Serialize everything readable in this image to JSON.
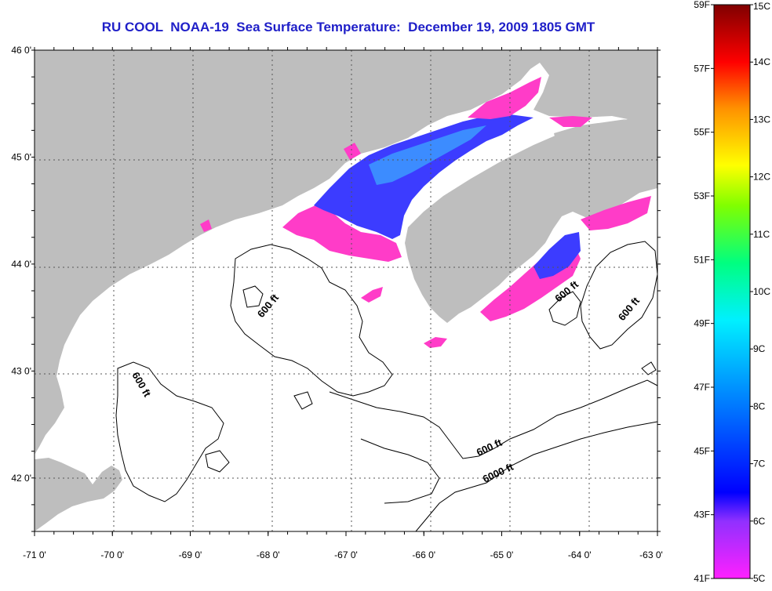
{
  "title": "RU COOL  NOAA-19  Sea Surface Temperature:  December 19, 2009 1805 GMT",
  "map": {
    "lon_ticks": [
      {
        "lon": -71,
        "label": "-71 0'"
      },
      {
        "lon": -70,
        "label": "-70 0'"
      },
      {
        "lon": -69,
        "label": "-69 0'"
      },
      {
        "lon": -68,
        "label": "-68 0'"
      },
      {
        "lon": -67,
        "label": "-67 0'"
      },
      {
        "lon": -66,
        "label": "-66 0'"
      },
      {
        "lon": -65,
        "label": "-65 0'"
      },
      {
        "lon": -64,
        "label": "-64 0'"
      },
      {
        "lon": -63,
        "label": "-63 0'"
      }
    ],
    "lat_ticks": [
      {
        "lat": 46,
        "label": "46 0'"
      },
      {
        "lat": 45,
        "label": "45 0'"
      },
      {
        "lat": 44,
        "label": "44 0'"
      },
      {
        "lat": 43,
        "label": "43 0'"
      },
      {
        "lat": 42,
        "label": "42 0'"
      }
    ],
    "lon_range": [
      -71,
      -63
    ],
    "lat_range": [
      41.5,
      46
    ],
    "contour_labels": [
      "600 ft",
      "600 ft",
      "600 ft",
      "600 ft",
      "600 ft",
      "6000 ft"
    ],
    "colors": {
      "land": "#bebebe",
      "ocean": "#ffffff",
      "sst_cold": "#ff3cc8",
      "sst_cool": "#3c3cff",
      "sst_mid": "#3c8cff"
    }
  },
  "colorbar": {
    "fahrenheit_labels": [
      "59F",
      "57F",
      "55F",
      "53F",
      "51F",
      "49F",
      "47F",
      "45F",
      "43F",
      "41F"
    ],
    "celsius_labels": [
      "15C",
      "14C",
      "13C",
      "12C",
      "11C",
      "10C",
      "9C",
      "8C",
      "7C",
      "6C",
      "5C"
    ],
    "celsius_range": [
      5,
      15
    ],
    "colormap": [
      "#ff20ff",
      "#8020ff",
      "#0000ff",
      "#0080ff",
      "#00e0ff",
      "#00ffa0",
      "#80ff00",
      "#ffff00",
      "#ff9000",
      "#ff0000",
      "#800000"
    ]
  }
}
